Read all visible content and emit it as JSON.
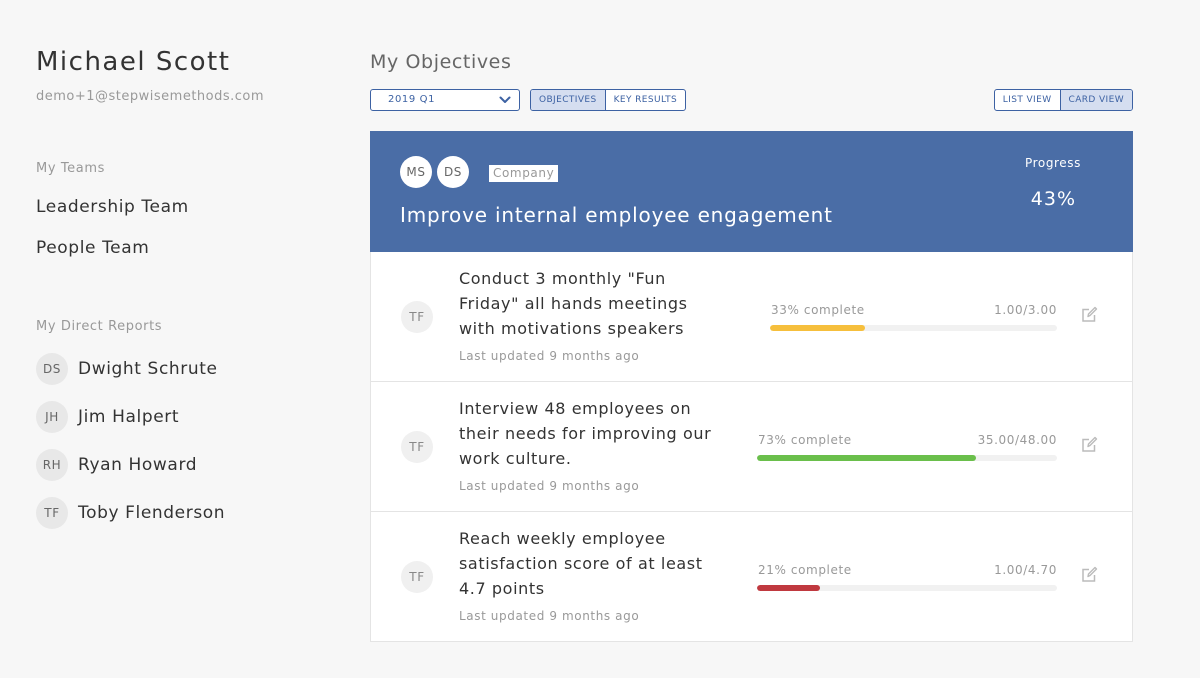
{
  "user": {
    "name": "Michael Scott",
    "email": "demo+1@stepwisemethods.com"
  },
  "teams": {
    "label": "My Teams",
    "items": [
      {
        "label": "Leadership Team"
      },
      {
        "label": "People Team"
      }
    ]
  },
  "reports": {
    "label": "My Direct Reports",
    "items": [
      {
        "initials": "DS",
        "name": "Dwight Schrute"
      },
      {
        "initials": "JH",
        "name": "Jim Halpert"
      },
      {
        "initials": "RH",
        "name": "Ryan Howard"
      },
      {
        "initials": "TF",
        "name": "Toby Flenderson"
      }
    ]
  },
  "main": {
    "title": "My Objectives",
    "period_select": "2019 Q1",
    "mode_toggle": {
      "objectives": "OBJECTIVES",
      "key_results": "KEY  RESULTS",
      "active": "objectives"
    },
    "view_toggle": {
      "list": "LIST VIEW",
      "card": "CARD VIEW",
      "active": "card"
    }
  },
  "objective": {
    "owners": [
      "MS",
      "DS"
    ],
    "tag": "Company",
    "title": "Improve internal employee engagement",
    "progress_label": "Progress",
    "progress": "43%"
  },
  "key_results": [
    {
      "owner": "TF",
      "title": "Conduct 3 monthly \"Fun Friday\" all hands meetings with motivations speakers",
      "updated": "Last updated 9 months ago",
      "percent_label": "33% complete",
      "percent": 33,
      "ratio": "1.00/3.00",
      "color": "#f6bf3c"
    },
    {
      "owner": "TF",
      "title": "Interview 48 employees on their needs for improving our work culture.",
      "updated": "Last updated 9 months ago",
      "percent_label": "73% complete",
      "percent": 73,
      "ratio": "35.00/48.00",
      "color": "#6abf4b"
    },
    {
      "owner": "TF",
      "title": "Reach weekly employee satisfaction score of at least 4.7 points",
      "updated": "Last updated 9 months ago",
      "percent_label": "21% complete",
      "percent": 21,
      "ratio": "1.00/4.70",
      "color": "#c0393f"
    }
  ],
  "colors": {
    "accent": "#3d62a3",
    "header_bg": "#4a6da6"
  },
  "icons": {
    "select_chevron": "chevron-down-icon",
    "edit": "edit-icon"
  }
}
